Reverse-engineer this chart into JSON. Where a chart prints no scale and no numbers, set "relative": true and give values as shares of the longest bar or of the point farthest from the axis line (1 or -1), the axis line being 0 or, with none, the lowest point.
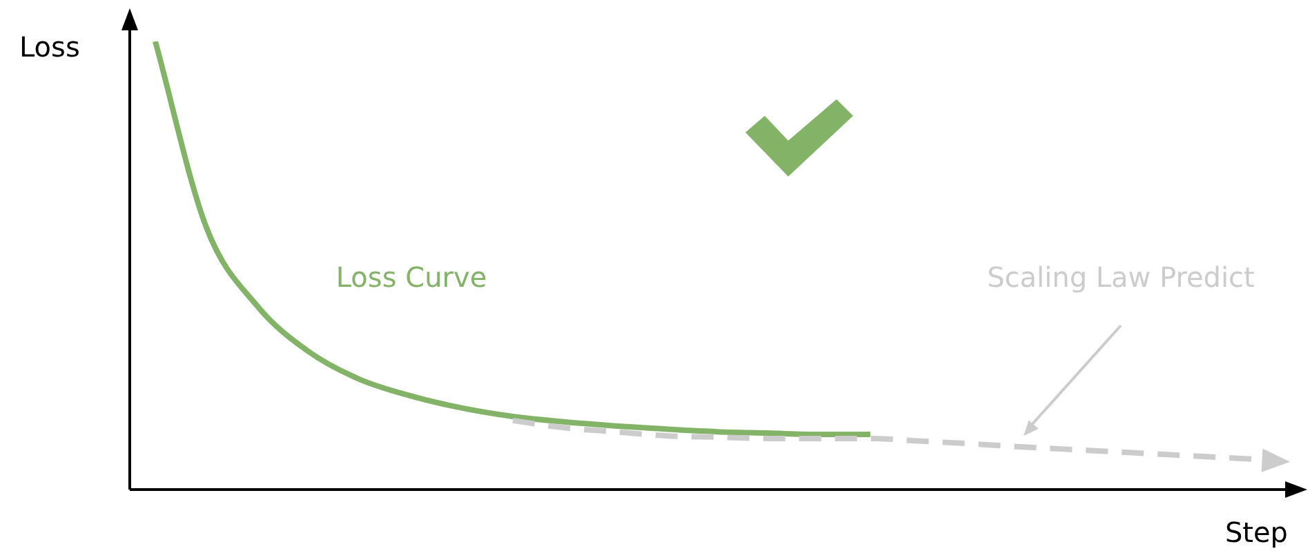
{
  "chart_data": {
    "type": "line",
    "relative": true,
    "xlabel": "Step",
    "ylabel": "Loss",
    "tick_labels": false,
    "grid": false,
    "legend": false,
    "marker": "none",
    "categories": [
      null,
      null,
      null,
      null,
      null,
      null,
      null,
      null,
      null,
      null,
      null,
      null,
      null,
      null,
      null,
      null,
      null,
      null,
      null,
      null,
      null,
      null,
      null
    ],
    "series": [
      {
        "name": "Loss Curve",
        "color": "#82b366",
        "line_style": "solid",
        "values": [
          1.0,
          0.585,
          0.409,
          0.308,
          0.246,
          0.209,
          0.182,
          0.163,
          0.151,
          0.142,
          0.135,
          0.129,
          0.126,
          0.123,
          0.123,
          null,
          null,
          null,
          null,
          null,
          null,
          null,
          null
        ]
      },
      {
        "name": "Scaling Law Predict",
        "color": "#cccccc",
        "line_style": "dashed",
        "values": [
          null,
          null,
          null,
          null,
          null,
          null,
          null,
          0.154,
          0.138,
          0.129,
          0.12,
          0.117,
          0.114,
          0.114,
          0.114,
          0.108,
          0.102,
          0.095,
          0.089,
          0.083,
          0.077,
          0.071,
          0.065
        ]
      }
    ]
  }
}
